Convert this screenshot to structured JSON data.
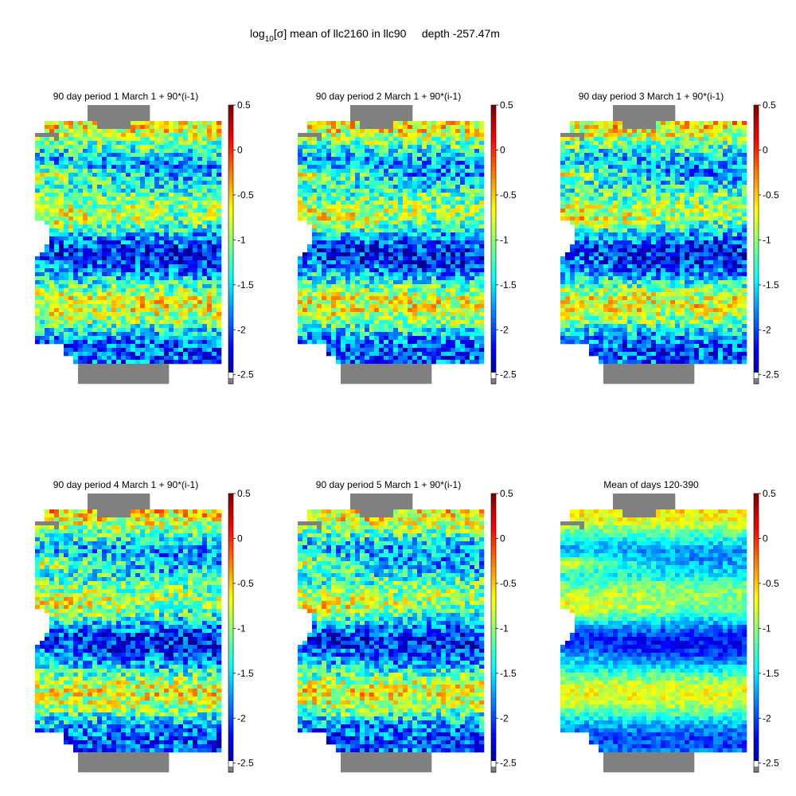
{
  "figure": {
    "title_prefix": "log",
    "title_sub": "10",
    "title_mid": "[σ]",
    "title_rest": " mean of llc2160 in llc90     depth -257.47m"
  },
  "colors": {
    "land": "#808080",
    "masked": "#ffffff",
    "colormap": "jet"
  },
  "chart_data": [
    {
      "type": "heatmap",
      "title": "90 day period 1 March 1 + 90*(i-1)",
      "colorbar": {
        "range": [
          -2.6,
          0.5
        ],
        "ticks": [
          "0.5",
          "0",
          "-0.5",
          "-1",
          "-1.5",
          "-2",
          "-2.5"
        ],
        "tick_values": [
          0.5,
          0,
          -0.5,
          -1,
          -1.5,
          -2,
          -2.5
        ]
      },
      "seed": 11
    },
    {
      "type": "heatmap",
      "title": "90 day period 2 March 1 + 90*(i-1)",
      "colorbar": {
        "range": [
          -2.6,
          0.5
        ],
        "ticks": [
          "0.5",
          "0",
          "-0.5",
          "-1",
          "-1.5",
          "-2",
          "-2.5"
        ],
        "tick_values": [
          0.5,
          0,
          -0.5,
          -1,
          -1.5,
          -2,
          -2.5
        ]
      },
      "seed": 23
    },
    {
      "type": "heatmap",
      "title": "90 day period 3 March 1 + 90*(i-1)",
      "colorbar": {
        "range": [
          -2.6,
          0.5
        ],
        "ticks": [
          "0.5",
          "0",
          "-0.5",
          "-1",
          "-1.5",
          "-2",
          "-2.5"
        ],
        "tick_values": [
          0.5,
          0,
          -0.5,
          -1,
          -1.5,
          -2,
          -2.5
        ]
      },
      "seed": 37
    },
    {
      "type": "heatmap",
      "title": "90 day period 4 March 1 + 90*(i-1)",
      "colorbar": {
        "range": [
          -2.6,
          0.5
        ],
        "ticks": [
          "0.5",
          "0",
          "-0.5",
          "-1",
          "-1.5",
          "-2",
          "-2.5"
        ],
        "tick_values": [
          0.5,
          0,
          -0.5,
          -1,
          -1.5,
          -2,
          -2.5
        ]
      },
      "seed": 41
    },
    {
      "type": "heatmap",
      "title": "90 day period 5 March 1 + 90*(i-1)",
      "colorbar": {
        "range": [
          -2.6,
          0.5
        ],
        "ticks": [
          "0.5",
          "0",
          "-0.5",
          "-1",
          "-1.5",
          "-2",
          "-2.5"
        ],
        "tick_values": [
          0.5,
          0,
          -0.5,
          -1,
          -1.5,
          -2,
          -2.5
        ]
      },
      "seed": 53
    },
    {
      "type": "heatmap",
      "title": "Mean of days 120-390",
      "colorbar": {
        "range": [
          -2.6,
          0.5
        ],
        "ticks": [
          "0.5",
          "0",
          "-0.5",
          "-1",
          "-1.5",
          "-2",
          "-2.5"
        ],
        "tick_values": [
          0.5,
          0,
          -0.5,
          -1,
          -1.5,
          -2,
          -2.5
        ]
      },
      "seed": 67,
      "smooth": true
    }
  ]
}
